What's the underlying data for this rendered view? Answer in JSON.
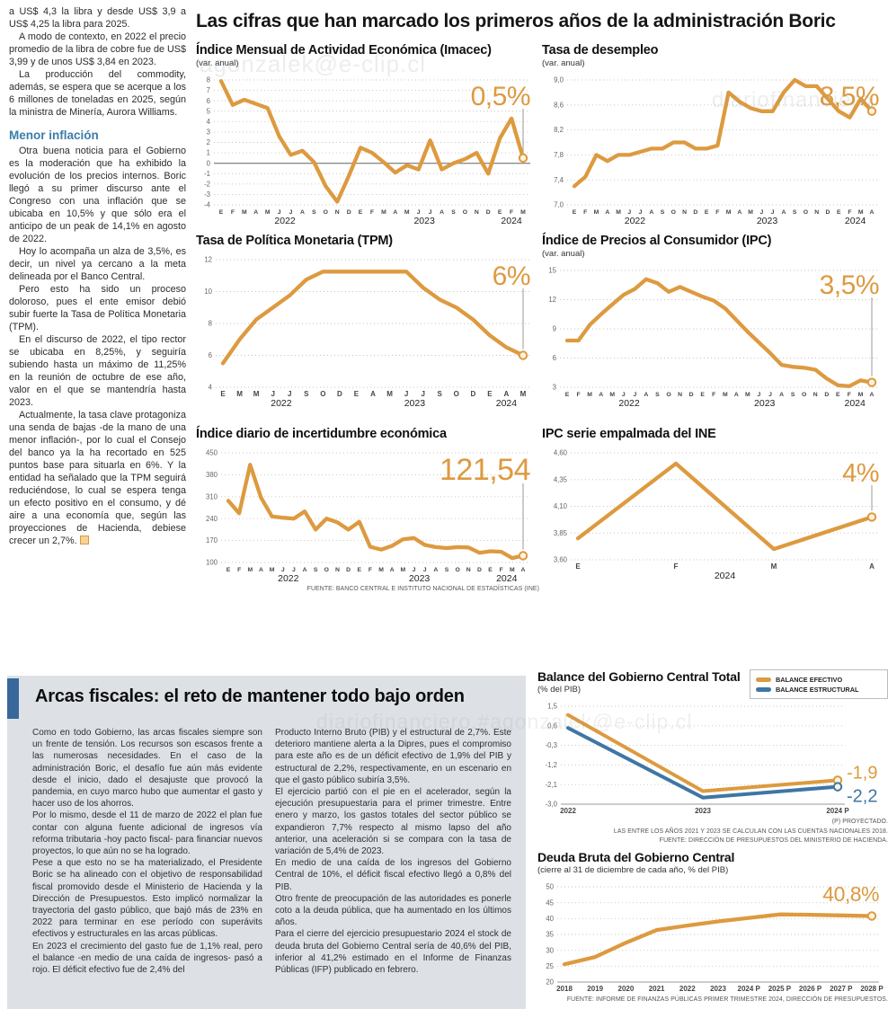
{
  "page": {
    "main_title": "Las cifras que han marcado los primeros años de la administración Boric",
    "watermarks": [
      "agonzalek@e-clip.cl",
      "diariofinanciero",
      "diariofinanciero.#agonzalek@e-clip.cl"
    ]
  },
  "left_article": {
    "paragraphs": [
      "a US$ 4,3 la libra y desde US$ 3,9 a US$ 4,25 la libra para 2025.",
      "A modo de contexto, en 2022 el precio promedio de la libra de cobre fue de US$ 3,99 y de unos US$ 3,84 en 2023.",
      "La producción del commodity, además, se espera que se acerque a los 6 millones de toneladas en 2025, según la ministra de Minería, Aurora Williams."
    ],
    "subheading": "Menor inflación",
    "paragraphs2": [
      "Otra buena noticia para el Gobierno es la moderación que ha exhibido la evolución de los precios internos. Boric llegó a su primer discurso ante el Congreso con una inflación que se ubicaba en 10,5% y que sólo era el anticipo de un peak de 14,1% en agosto de 2022.",
      "Hoy lo acompaña un alza de 3,5%, es decir, un nivel ya cercano a la meta delineada por el Banco Central.",
      "Pero esto ha sido un proceso doloroso, pues el ente emisor debió subir fuerte la Tasa de Política Monetaria (TPM).",
      "En el discurso de 2022, el tipo rector se ubicaba en 8,25%, y seguiría subiendo hasta un máximo de 11,25% en la reunión de octubre de ese año, valor en el que se mantendría hasta 2023.",
      "Actualmente, la tasa clave protagoniza una senda de bajas -de la mano de una menor inflación-, por lo cual el Consejo del banco ya la ha recortado en 525 puntos base para situarla en 6%. Y la entidad ha señalado que la TPM seguirá reduciéndose, lo cual se espera tenga un efecto positivo en el consumo, y dé aire a una economía que, según las proyecciones de Hacienda, debiese crecer un 2,7%."
    ]
  },
  "fiscal_box": {
    "headline": "Arcas fiscales: el reto de mantener todo bajo orden",
    "col1": [
      "Como en todo Gobierno, las arcas fiscales siempre son un frente de tensión. Los recursos son escasos frente a las numerosas necesidades. En el caso de la administración Boric, el desafío fue aún más evidente desde el inicio, dado el desajuste que provocó la pandemia, en cuyo marco hubo que aumentar el gasto y hacer uso de los ahorros.",
      "Por lo mismo, desde el 11 de marzo de 2022 el plan fue contar con alguna fuente adicional de ingresos vía reforma tributaria -hoy pacto fiscal- para financiar nuevos proyectos, lo que aún no se ha logrado.",
      "Pese a que esto no se ha materializado, el Presidente Boric se ha alineado con el objetivo de responsabilidad fiscal promovido desde el Ministerio de Hacienda y la Dirección de Presupuestos. Esto implicó normalizar la trayectoria del gasto público, que bajó más de 23% en 2022 para terminar en ese período con superávits efectivos y estructurales en las arcas públicas.",
      "En 2023 el crecimiento del gasto fue de 1,1% real, pero el balance -en medio de una caída de ingresos- pasó a rojo. El déficit efectivo fue de 2,4% del"
    ],
    "col2": [
      "Producto Interno Bruto (PIB) y el estructural de 2,7%. Este deterioro mantiene alerta a la Dipres, pues el compromiso para este año es de un déficit efectivo de 1,9% del PIB y estructural de 2,2%, respectivamente, en un escenario en que el gasto público subiría 3,5%.",
      "El ejercicio partió con el pie en el acelerador, según la ejecución presupuestaria para el primer trimestre. Entre enero y marzo, los gastos totales del sector público se expandieron 7,7% respecto al mismo lapso del año anterior, una aceleración si se compara con la tasa de variación de 5,4% de 2023.",
      "En medio de una caída de los ingresos del Gobierno Central de 10%, el déficit fiscal efectivo llegó a 0,8% del PIB.",
      "Otro frente de preocupación de las autoridades es ponerle coto a la deuda pública, que ha aumentado en los últimos años.",
      "Para el cierre del ejercicio presupuestario 2024 el stock de deuda bruta del Gobierno Central sería de 40,6% del PIB, inferior al 41,2% estimado en el Informe de Finanzas Públicas (IFP) publicado en febrero."
    ]
  },
  "palette": {
    "orange": "#dd9a3f",
    "blue": "#3e76a5"
  },
  "chart_data": [
    {
      "id": "imacec",
      "type": "line",
      "title": "Índice Mensual de Actividad Económica (Imacec)",
      "subtitle": "(var. anual)",
      "big_label": "0,5%",
      "callout": true,
      "y_min": -4,
      "y_max": 8,
      "zero_line": 0,
      "y_ticks": [
        {
          "v": 8,
          "t": "8"
        },
        {
          "v": 7,
          "t": "7"
        },
        {
          "v": 6,
          "t": "6"
        },
        {
          "v": 5,
          "t": "5"
        },
        {
          "v": 4,
          "t": "4"
        },
        {
          "v": 3,
          "t": "3"
        },
        {
          "v": 2,
          "t": "2"
        },
        {
          "v": 1,
          "t": "1"
        },
        {
          "v": 0,
          "t": "0"
        },
        {
          "v": -1,
          "t": "-1"
        },
        {
          "v": -2,
          "t": "-2"
        },
        {
          "v": -3,
          "t": "-3"
        },
        {
          "v": -4,
          "t": "-4"
        }
      ],
      "x_labels": [
        "E",
        "F",
        "M",
        "A",
        "M",
        "J",
        "J",
        "A",
        "S",
        "O",
        "N",
        "D",
        "E",
        "F",
        "M",
        "A",
        "M",
        "J",
        "J",
        "A",
        "S",
        "O",
        "N",
        "D",
        "E",
        "F",
        "M"
      ],
      "years": [
        {
          "t": "2022",
          "i": 5.5
        },
        {
          "t": "2023",
          "i": 17.5
        },
        {
          "t": "2024",
          "i": 25
        }
      ],
      "series": [
        {
          "name": "Imacec",
          "color": "orange",
          "endpoint": true,
          "values": [
            7.9,
            5.6,
            6.1,
            5.7,
            5.3,
            2.6,
            0.8,
            1.2,
            0.1,
            -2.2,
            -3.7,
            -1.2,
            1.5,
            1.0,
            0.1,
            -0.9,
            -0.2,
            -0.6,
            2.2,
            -0.6,
            0.0,
            0.4,
            1.0,
            -1.0,
            2.4,
            4.3,
            0.5
          ]
        }
      ]
    },
    {
      "id": "desempleo",
      "type": "line",
      "title": "Tasa de desempleo",
      "subtitle": "(var. anual)",
      "big_label": "8,5%",
      "callout": true,
      "y_min": 7.0,
      "y_max": 9.0,
      "y_ticks": [
        {
          "v": 9.0,
          "t": "9,0"
        },
        {
          "v": 8.6,
          "t": "8,6"
        },
        {
          "v": 8.2,
          "t": "8,2"
        },
        {
          "v": 7.8,
          "t": "7,8"
        },
        {
          "v": 7.4,
          "t": "7,4"
        },
        {
          "v": 7.0,
          "t": "7,0"
        }
      ],
      "x_labels": [
        "E",
        "F",
        "M",
        "A",
        "M",
        "J",
        "J",
        "A",
        "S",
        "O",
        "N",
        "D",
        "E",
        "F",
        "M",
        "A",
        "M",
        "J",
        "J",
        "A",
        "S",
        "O",
        "N",
        "D",
        "E",
        "F",
        "M",
        "A"
      ],
      "years": [
        {
          "t": "2022",
          "i": 5.5
        },
        {
          "t": "2023",
          "i": 17.5
        },
        {
          "t": "2024",
          "i": 25.5
        }
      ],
      "series": [
        {
          "name": "Tasa de desempleo",
          "color": "orange",
          "endpoint": true,
          "values": [
            7.3,
            7.45,
            7.8,
            7.7,
            7.8,
            7.8,
            7.85,
            7.9,
            7.9,
            8.0,
            8.0,
            7.9,
            7.9,
            7.95,
            8.8,
            8.65,
            8.55,
            8.5,
            8.5,
            8.8,
            9.0,
            8.9,
            8.9,
            8.7,
            8.5,
            8.4,
            8.7,
            8.5
          ]
        }
      ]
    },
    {
      "id": "tpm",
      "type": "line",
      "title": "Tasa de Política Monetaria (TPM)",
      "subtitle": null,
      "big_label": "6%",
      "callout": true,
      "y_min": 4,
      "y_max": 12,
      "y_ticks": [
        {
          "v": 12,
          "t": "12"
        },
        {
          "v": 10,
          "t": "10"
        },
        {
          "v": 8,
          "t": "8"
        },
        {
          "v": 6,
          "t": "6"
        },
        {
          "v": 4,
          "t": "4"
        }
      ],
      "x_labels": [
        "E",
        "M",
        "M",
        "J",
        "J",
        "S",
        "O",
        "D",
        "E",
        "A",
        "M",
        "J",
        "J",
        "S",
        "O",
        "D",
        "E",
        "A",
        "M"
      ],
      "years": [
        {
          "t": "2022",
          "i": 3.5
        },
        {
          "t": "2023",
          "i": 11.5
        },
        {
          "t": "2024",
          "i": 17
        }
      ],
      "series": [
        {
          "name": "TPM",
          "color": "orange",
          "endpoint": true,
          "values": [
            5.5,
            7.0,
            8.25,
            9.0,
            9.75,
            10.75,
            11.25,
            11.25,
            11.25,
            11.25,
            11.25,
            11.25,
            10.25,
            9.5,
            9.0,
            8.25,
            7.25,
            6.5,
            6.0
          ]
        }
      ]
    },
    {
      "id": "ipc",
      "type": "line",
      "title": "Índice de Precios al Consumidor (IPC)",
      "subtitle": "(var. anual)",
      "big_label": "3,5%",
      "callout": true,
      "y_min": 3,
      "y_max": 15,
      "y_ticks": [
        {
          "v": 15,
          "t": "15"
        },
        {
          "v": 12,
          "t": "12"
        },
        {
          "v": 9,
          "t": "9"
        },
        {
          "v": 6,
          "t": "6"
        },
        {
          "v": 3,
          "t": "3"
        }
      ],
      "x_labels": [
        "E",
        "F",
        "M",
        "A",
        "M",
        "J",
        "J",
        "A",
        "S",
        "O",
        "N",
        "D",
        "E",
        "F",
        "M",
        "A",
        "M",
        "J",
        "J",
        "A",
        "S",
        "O",
        "N",
        "D",
        "E",
        "F",
        "M",
        "A"
      ],
      "years": [
        {
          "t": "2022",
          "i": 5.5
        },
        {
          "t": "2023",
          "i": 17.5
        },
        {
          "t": "2024",
          "i": 25.5
        }
      ],
      "series": [
        {
          "name": "IPC",
          "color": "orange",
          "endpoint": true,
          "values": [
            7.8,
            7.8,
            9.4,
            10.5,
            11.5,
            12.5,
            13.1,
            14.1,
            13.7,
            12.8,
            13.3,
            12.8,
            12.3,
            11.9,
            11.1,
            9.9,
            8.7,
            7.6,
            6.5,
            5.3,
            5.1,
            5.0,
            4.8,
            3.9,
            3.2,
            3.1,
            3.7,
            3.5
          ]
        }
      ]
    },
    {
      "id": "incert",
      "type": "line",
      "title": "Índice diario de incertidumbre económica",
      "subtitle": null,
      "big_label": "121,54",
      "callout": true,
      "y_min": 100,
      "y_max": 450,
      "y_ticks": [
        {
          "v": 450,
          "t": "450"
        },
        {
          "v": 380,
          "t": "380"
        },
        {
          "v": 310,
          "t": "310"
        },
        {
          "v": 240,
          "t": "240"
        },
        {
          "v": 170,
          "t": "170"
        },
        {
          "v": 100,
          "t": "100"
        }
      ],
      "x_labels": [
        "E",
        "F",
        "M",
        "A",
        "M",
        "J",
        "J",
        "A",
        "S",
        "O",
        "N",
        "D",
        "E",
        "F",
        "M",
        "A",
        "M",
        "J",
        "J",
        "A",
        "S",
        "O",
        "N",
        "D",
        "E",
        "F",
        "M",
        "A"
      ],
      "years": [
        {
          "t": "2022",
          "i": 5.5
        },
        {
          "t": "2023",
          "i": 17.5
        },
        {
          "t": "2024",
          "i": 25.5
        }
      ],
      "series": [
        {
          "name": "Incertidumbre económica",
          "color": "orange",
          "endpoint": true,
          "values": [
            297,
            257,
            412,
            307,
            247,
            243,
            240,
            263,
            205,
            240,
            228,
            205,
            230,
            150,
            141,
            153,
            174,
            178,
            156,
            149,
            146,
            149,
            148,
            131,
            136,
            134,
            114,
            121.54
          ]
        }
      ],
      "source": "FUENTE: BANCO CENTRAL E INSTITUTO NACIONAL DE ESTADÍSTICAS (INE)"
    },
    {
      "id": "empalmada",
      "type": "line",
      "title": "IPC serie empalmada del INE",
      "subtitle": null,
      "big_label": "4%",
      "callout": true,
      "y_min": 3.6,
      "y_max": 4.6,
      "y_ticks": [
        {
          "v": 4.6,
          "t": "4,60"
        },
        {
          "v": 4.35,
          "t": "4,35"
        },
        {
          "v": 4.1,
          "t": "4,10"
        },
        {
          "v": 3.85,
          "t": "3,85"
        },
        {
          "v": 3.6,
          "t": "3,60"
        }
      ],
      "x_labels": [
        "E",
        "F",
        "M",
        "A"
      ],
      "years": [
        {
          "t": "2024",
          "i": 1.5
        }
      ],
      "series": [
        {
          "name": "IPC serie empalmada",
          "color": "orange",
          "endpoint": true,
          "values": [
            3.8,
            4.5,
            3.7,
            4.0
          ]
        }
      ]
    },
    {
      "id": "balance",
      "type": "line",
      "title": "Balance del Gobierno Central Total",
      "subtitle": "(% del PIB)",
      "legend": [
        {
          "t": "BALANCE EFECTIVO",
          "color": "orange"
        },
        {
          "t": "BALANCE ESTRUCTURAL",
          "color": "blue"
        }
      ],
      "y_min": -3.0,
      "y_max": 1.5,
      "baseline": true,
      "y_ticks": [
        {
          "v": 1.5,
          "t": "1,5"
        },
        {
          "v": 0.6,
          "t": "0,6"
        },
        {
          "v": -0.3,
          "t": "-0,3"
        },
        {
          "v": -1.2,
          "t": "-1,2"
        },
        {
          "v": -2.1,
          "t": "-2,1"
        },
        {
          "v": -3.0,
          "t": "-3,0"
        }
      ],
      "x_labels": [
        "2022",
        "2023",
        "2024 P"
      ],
      "series": [
        {
          "name": "BALANCE EFECTIVO",
          "color": "orange",
          "endpoint": true,
          "end_label": "-1,9",
          "values": [
            1.1,
            -2.4,
            -1.9
          ]
        },
        {
          "name": "BALANCE ESTRUCTURAL",
          "color": "blue",
          "endpoint": true,
          "end_label": "-2,2",
          "values": [
            0.5,
            -2.7,
            -2.2
          ]
        }
      ],
      "footnotes": [
        "(P) PROYECTADO.",
        "LAS ENTRE LOS AÑOS 2021 Y 2023 SE CALCULAN CON LAS CUENTAS NACIONALES 2018.",
        "FUENTE: DIRECCIÓN DE PRESUPUESTOS DEL MINISTERIO DE HACIENDA."
      ]
    },
    {
      "id": "deuda",
      "type": "line",
      "title": "Deuda Bruta del Gobierno Central",
      "subtitle": "(cierre al 31 de diciembre de cada año, % del PIB)",
      "big_label": "40,8%",
      "y_min": 20,
      "y_max": 50,
      "baseline": true,
      "y_ticks": [
        {
          "v": 50,
          "t": "50"
        },
        {
          "v": 45,
          "t": "45"
        },
        {
          "v": 40,
          "t": "40"
        },
        {
          "v": 35,
          "t": "35"
        },
        {
          "v": 30,
          "t": "30"
        },
        {
          "v": 25,
          "t": "25"
        },
        {
          "v": 20,
          "t": "20"
        }
      ],
      "x_labels": [
        "2018",
        "2019",
        "2020",
        "2021",
        "2022",
        "2023",
        "2024 P",
        "2025 P",
        "2026 P",
        "2027 P",
        "2028 P"
      ],
      "series": [
        {
          "name": "Deuda bruta",
          "color": "orange",
          "endpoint": true,
          "values": [
            25.6,
            27.9,
            32.4,
            36.4,
            37.8,
            39.1,
            40.2,
            41.3,
            41.2,
            41.0,
            40.8
          ]
        }
      ],
      "source": "FUENTE: INFORME DE FINANZAS PÚBLICAS PRIMER TRIMESTRE 2024, DIRECCIÓN DE PRESUPUESTOS."
    }
  ]
}
